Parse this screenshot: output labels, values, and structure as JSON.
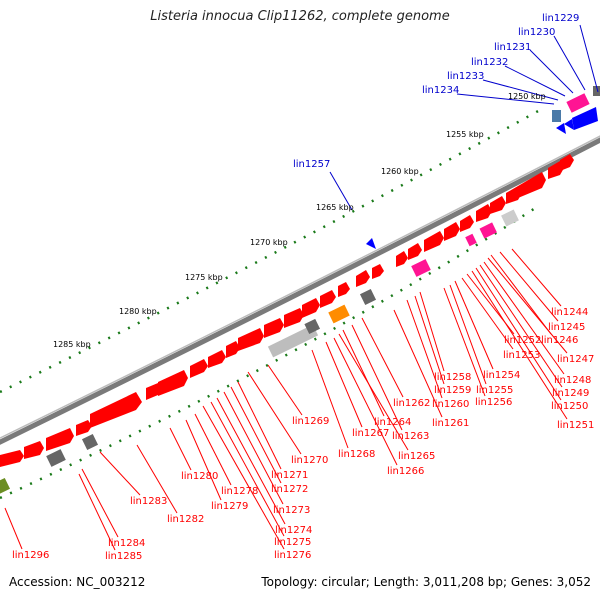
{
  "title": "Listeria innocua Clip11262, complete genome",
  "footer": {
    "accession": "Accession: NC_003212",
    "summary": "Topology: circular; Length: 3,011,208 bp; Genes: 3,052"
  },
  "colors": {
    "forward_gene": "#ff0000",
    "reverse_gene": "#0000ff",
    "rrna": "#ff1493",
    "pseudo": "#808080",
    "misc": "#ff8c00",
    "label_red": "#ff0000",
    "label_blue": "#0000cc",
    "tick": "#1a7a1a"
  },
  "ticks": [
    "1250 kbp",
    "1255 kbp",
    "1260 kbp",
    "1265 kbp",
    "1270 kbp",
    "1275 kbp",
    "1280 kbp",
    "1285 kbp"
  ],
  "blue_labels": [
    "lin1229",
    "lin1230",
    "lin1231",
    "lin1232",
    "lin1233",
    "lin1234",
    "lin1257"
  ],
  "red_labels": [
    "lin1244",
    "lin1245",
    "lin1246",
    "lin1247",
    "lin1248",
    "lin1249",
    "lin1250",
    "lin1251",
    "lin1252",
    "lin1253",
    "lin1254",
    "lin1255",
    "lin1256",
    "lin1258",
    "lin1259",
    "lin1260",
    "lin1261",
    "lin1262",
    "lin1263",
    "lin1264",
    "lin1265",
    "lin1266",
    "lin1267",
    "lin1268",
    "lin1269",
    "lin1270",
    "lin1271",
    "lin1272",
    "lin1273",
    "lin1274",
    "lin1275",
    "lin1276",
    "lin1278",
    "lin1279",
    "lin1280",
    "lin1282",
    "lin1283",
    "lin1284",
    "lin1285",
    "lin1296"
  ]
}
